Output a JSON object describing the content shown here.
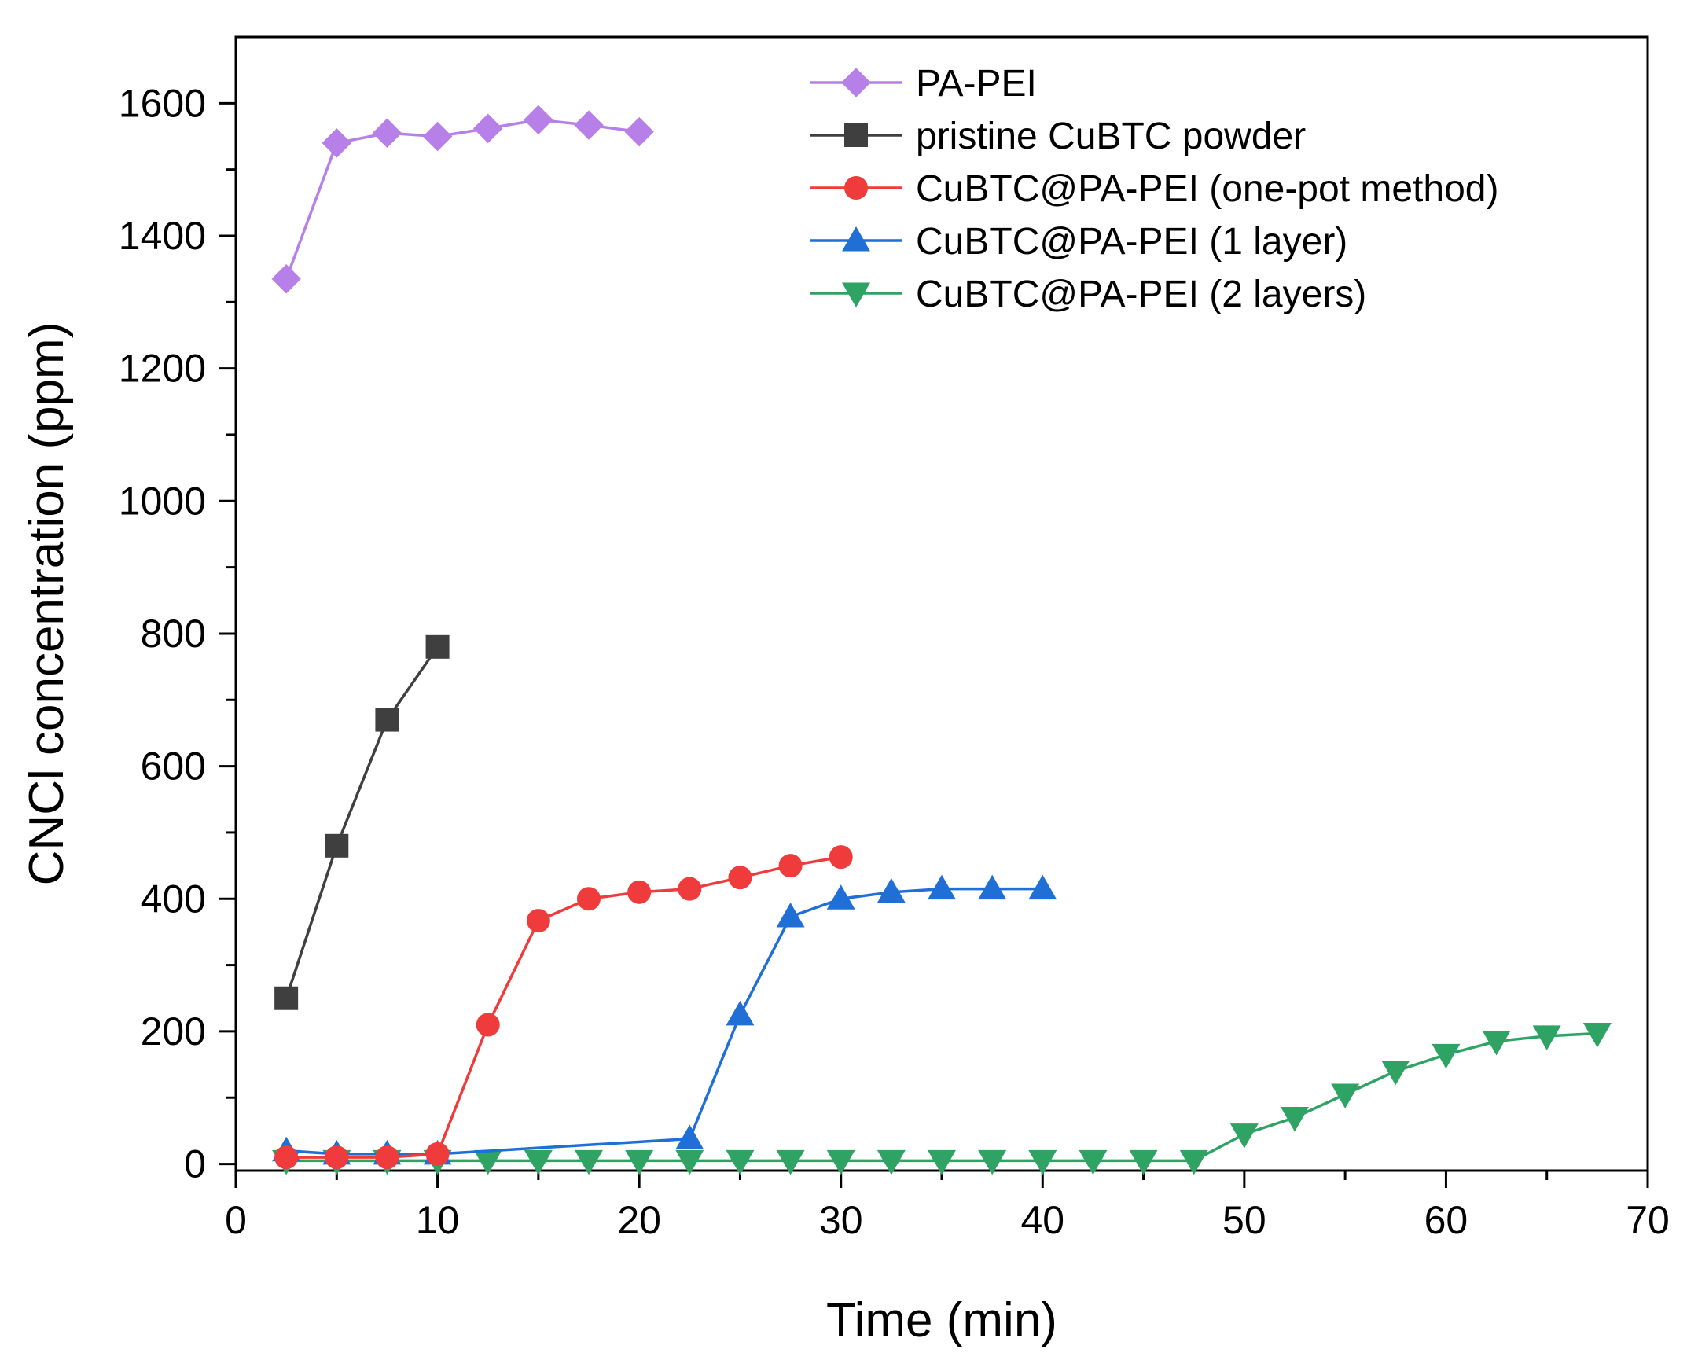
{
  "chart_data": {
    "type": "line",
    "title": "",
    "xlabel": "Time (min)",
    "ylabel": "CNCl concentration (ppm)",
    "xlim": [
      0,
      70
    ],
    "ylim": [
      -10,
      1700
    ],
    "xticks": [
      0,
      10,
      20,
      30,
      40,
      50,
      60,
      70
    ],
    "yticks": [
      0,
      200,
      400,
      600,
      800,
      1000,
      1200,
      1400,
      1600
    ],
    "grid": false,
    "legend_position": "top-right",
    "series": [
      {
        "name": "PA-PEI",
        "color": "#b77fe8",
        "marker": "diamond",
        "x": [
          2.5,
          5,
          7.5,
          10,
          12.5,
          15,
          17.5,
          20
        ],
        "y": [
          1335,
          1540,
          1555,
          1550,
          1562,
          1575,
          1567,
          1557
        ]
      },
      {
        "name": "pristine CuBTC powder",
        "color": "#3f3f3f",
        "marker": "square",
        "x": [
          2.5,
          5,
          7.5,
          10
        ],
        "y": [
          250,
          480,
          670,
          780
        ]
      },
      {
        "name": "CuBTC@PA-PEI (one-pot method)",
        "color": "#ef3b3b",
        "marker": "circle",
        "x": [
          2.5,
          5,
          7.5,
          10,
          12.5,
          15,
          17.5,
          20,
          22.5,
          25,
          27.5,
          30
        ],
        "y": [
          10,
          10,
          10,
          15,
          210,
          367,
          400,
          410,
          415,
          432,
          450,
          463
        ]
      },
      {
        "name": "CuBTC@PA-PEI (1 layer)",
        "color": "#1f6fd6",
        "marker": "triangle-up",
        "x": [
          2.5,
          5,
          7.5,
          10,
          22.5,
          25,
          27.5,
          30,
          32.5,
          35,
          37.5,
          40
        ],
        "y": [
          20,
          15,
          15,
          15,
          38,
          225,
          373,
          400,
          410,
          415,
          415,
          415
        ]
      },
      {
        "name": "CuBTC@PA-PEI (2 layers)",
        "color": "#2fa363",
        "marker": "triangle-down",
        "x": [
          2.5,
          5,
          7.5,
          10,
          12.5,
          15,
          17.5,
          20,
          22.5,
          25,
          27.5,
          30,
          32.5,
          35,
          37.5,
          40,
          42.5,
          45,
          47.5,
          50,
          52.5,
          55,
          57.5,
          60,
          62.5,
          65,
          67.5
        ],
        "y": [
          5,
          5,
          5,
          5,
          5,
          5,
          5,
          5,
          5,
          5,
          5,
          5,
          5,
          5,
          5,
          5,
          5,
          5,
          5,
          45,
          70,
          105,
          140,
          165,
          185,
          193,
          197
        ]
      }
    ]
  }
}
